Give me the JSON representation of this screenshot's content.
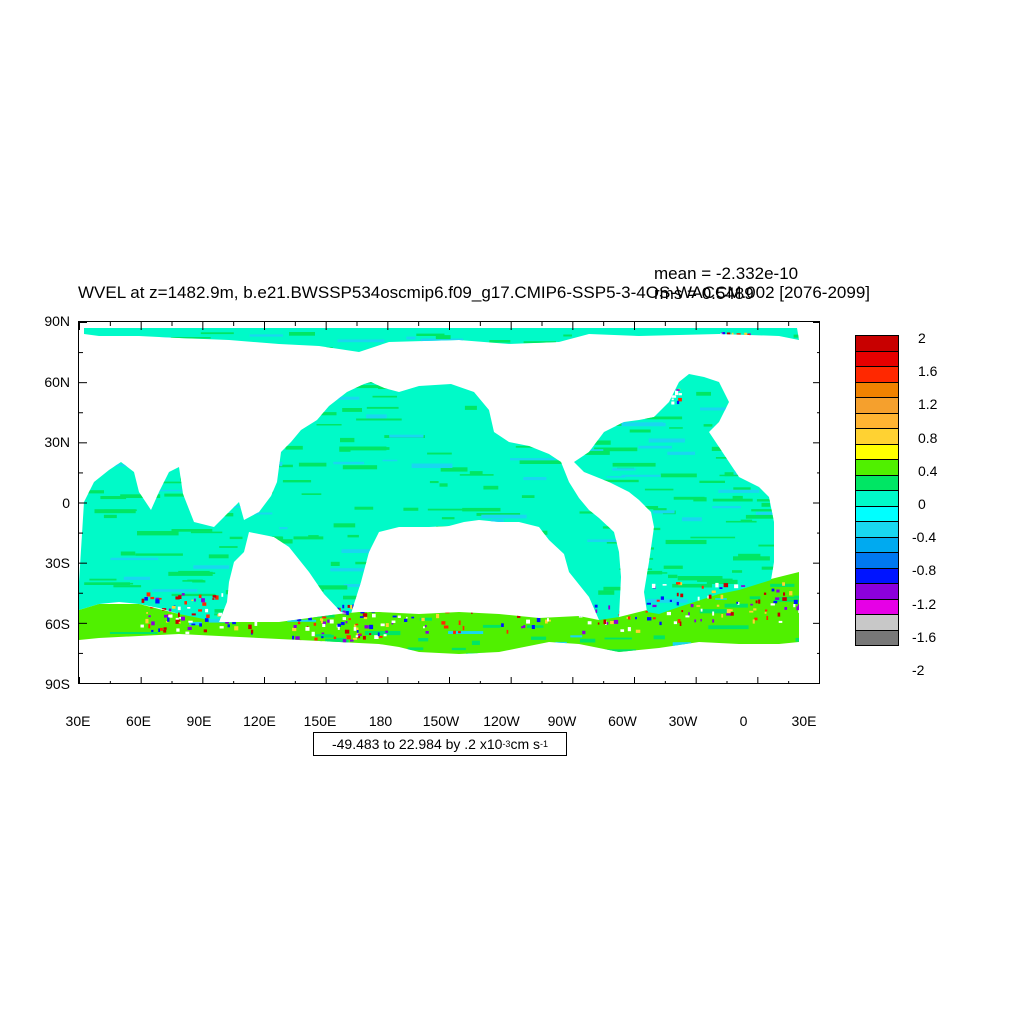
{
  "title": "WVEL at z=1482.9m, b.e21.BWSSP534oscmip6.f09_g17.CMIP6-SSP5-3-4OS-WACCM.002 [2076-2099]",
  "stats": {
    "mean": "mean = -2.332e-10",
    "rms": "rms = 0.5489"
  },
  "axes": {
    "lat_labels": [
      "90N",
      "60N",
      "30N",
      "0",
      "30S",
      "60S",
      "90S"
    ],
    "lon_labels": [
      "30E",
      "60E",
      "90E",
      "120E",
      "150E",
      "180",
      "150W",
      "120W",
      "90W",
      "60W",
      "30W",
      "0",
      "30E"
    ]
  },
  "range_note": {
    "main": "-49.483 to 22.984 by .2 x10",
    "exp": "-3",
    "unit": " cm s",
    "unit_exp": "-1"
  },
  "colorbar": {
    "colors": [
      "#c80000",
      "#e60000",
      "#ff2800",
      "#f08200",
      "#f5a02d",
      "#ffb432",
      "#ffd232",
      "#ffff00",
      "#50f000",
      "#00e664",
      "#00fac8",
      "#00ffff",
      "#19d7f0",
      "#00aaf0",
      "#0078f0",
      "#0014ff",
      "#8c00dc",
      "#e600e6",
      "#c8c8c8",
      "#787878"
    ],
    "labels": [
      "2",
      "1.6",
      "1.2",
      "0.8",
      "0.4",
      "0",
      "-0.4",
      "-0.8",
      "-1.2",
      "-1.6",
      "-2"
    ]
  },
  "map_colors": {
    "ocean_base": "#00fac8",
    "band_a": "#00e664",
    "band_b": "#19d7f0",
    "southern": "#50f000",
    "hot": "#ff2800",
    "cold": "#0014ff",
    "warm": "#ffd232"
  }
}
